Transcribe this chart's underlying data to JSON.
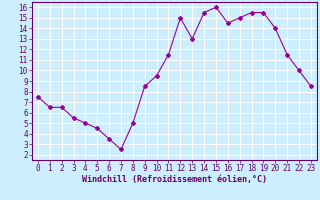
{
  "x": [
    0,
    1,
    2,
    3,
    4,
    5,
    6,
    7,
    8,
    9,
    10,
    11,
    12,
    13,
    14,
    15,
    16,
    17,
    18,
    19,
    20,
    21,
    22,
    23
  ],
  "y": [
    7.5,
    6.5,
    6.5,
    5.5,
    5.0,
    4.5,
    3.5,
    2.5,
    5.0,
    8.5,
    9.5,
    11.5,
    15.0,
    13.0,
    15.5,
    16.0,
    14.5,
    15.0,
    15.5,
    15.5,
    14.0,
    11.5,
    10.0,
    8.5
  ],
  "line_color": "#990099",
  "marker": "D",
  "markersize": 2,
  "linewidth": 0.8,
  "xlabel": "Windchill (Refroidissement éolien,°C)",
  "xlabel_fontsize": 6,
  "xlim": [
    -0.5,
    23.5
  ],
  "ylim": [
    1.5,
    16.5
  ],
  "yticks": [
    2,
    3,
    4,
    5,
    6,
    7,
    8,
    9,
    10,
    11,
    12,
    13,
    14,
    15,
    16
  ],
  "xticks": [
    0,
    1,
    2,
    3,
    4,
    5,
    6,
    7,
    8,
    9,
    10,
    11,
    12,
    13,
    14,
    15,
    16,
    17,
    18,
    19,
    20,
    21,
    22,
    23
  ],
  "background_color": "#cceeff",
  "grid_color": "#ffffff",
  "tick_fontsize": 5.5,
  "axis_label_color": "#660066",
  "spine_color": "#660066"
}
